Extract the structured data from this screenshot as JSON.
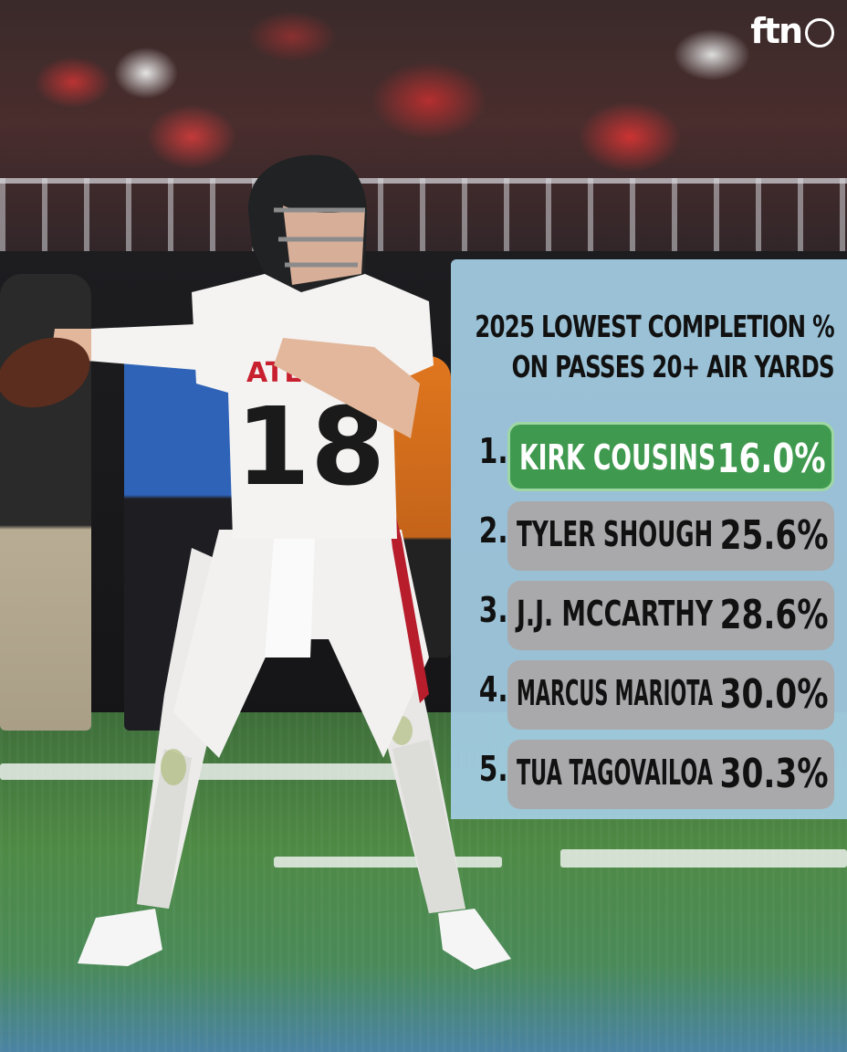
{
  "brand": {
    "logo_text": "ftn"
  },
  "panel": {
    "title_line1": "2025 LOWEST COMPLETION %",
    "title_line2": "ON PASSES 20+ AIR YARDS",
    "highlight_color": "#3f9a4f",
    "row_color": "#a9a9ab",
    "panel_color": "#a4cde4",
    "rows": [
      {
        "rank": "1.",
        "name": "KIRK COUSINS",
        "value": "16.0%",
        "highlighted": true
      },
      {
        "rank": "2.",
        "name": "TYLER SHOUGH",
        "value": "25.6%",
        "highlighted": false
      },
      {
        "rank": "3.",
        "name": "J.J. MCCARTHY",
        "value": "28.6%",
        "highlighted": false
      },
      {
        "rank": "4.",
        "name": "MARCUS MARIOTA",
        "value": "30.0%",
        "highlighted": false
      },
      {
        "rank": "5.",
        "name": "TUA TAGOVAILOA",
        "value": "30.3%",
        "highlighted": false
      }
    ]
  },
  "photo": {
    "jersey_number": "18",
    "jersey_text": "ATL"
  }
}
